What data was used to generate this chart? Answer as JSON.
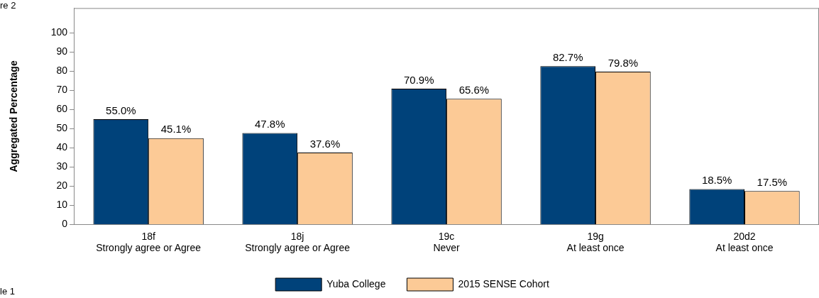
{
  "chart_data": {
    "type": "bar",
    "ylabel": "Aggregated Percentage",
    "categories": [
      "18f\nStrongly agree or Agree",
      "18j\nStrongly agree or Agree",
      "19c\nNever",
      "19g\nAt least once",
      "20d2\nAt least once"
    ],
    "series": [
      {
        "name": "Yuba College",
        "color": "#00427a",
        "values": [
          55.0,
          47.8,
          70.9,
          82.7,
          18.5
        ],
        "value_labels": [
          "55.0%",
          "47.8%",
          "70.9%",
          "82.7%",
          "18.5%"
        ]
      },
      {
        "name": "2015 SENSE Cohort",
        "color": "#fcca96",
        "values": [
          45.1,
          37.6,
          65.6,
          79.8,
          17.5
        ],
        "value_labels": [
          "45.1%",
          "37.6%",
          "65.6%",
          "79.8%",
          "17.5%"
        ]
      }
    ],
    "ylim": [
      0,
      113
    ],
    "yticks": [
      0,
      10,
      20,
      30,
      40,
      50,
      60,
      70,
      80,
      90,
      100
    ],
    "grid": false,
    "legend": "bottom",
    "annotations": [
      "re 2",
      "le 1"
    ]
  }
}
